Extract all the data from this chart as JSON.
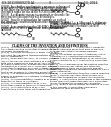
{
  "background_color": "#ffffff",
  "header_left": "US 2011/0009270 A1",
  "header_right": "Jan. 13, 2011",
  "header_center": "9",
  "col_split": 64
}
